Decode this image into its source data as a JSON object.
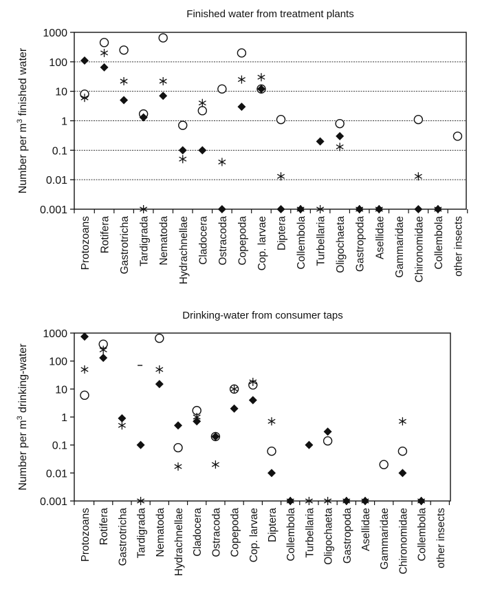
{
  "chart_data": [
    {
      "type": "scatter",
      "title": "Finished water from treatment plants",
      "xlabel": "",
      "ylabel": "Number per m3 finished water",
      "yscale": "log",
      "ylim": [
        0.001,
        1000
      ],
      "yticks": [
        "1000",
        "100",
        "10",
        "1",
        "0.1",
        "0.01",
        "0.001"
      ],
      "grid": "horizontal-dotted",
      "categories": [
        "Protozoans",
        "Rotifera",
        "Gastrotricha",
        "Tardigrada",
        "Nematoda",
        "Hydrachnellae",
        "Cladocera",
        "Ostracoda",
        "Copepoda",
        "Cop. larvae",
        "Diptera",
        "Collembola",
        "Turbellaria",
        "Oligochaeta",
        "Gastropoda",
        "Asellidae",
        "Gammaridae",
        "Chironomidae",
        "Collembola",
        "other insects"
      ],
      "series": [
        {
          "name": "filled-diamond",
          "marker": "diamond",
          "values": [
            110,
            65,
            5,
            1.3,
            7,
            0.1,
            0.1,
            0.001,
            3,
            12,
            0.001,
            0.001,
            0.2,
            0.3,
            0.001,
            0.001,
            null,
            0.001,
            0.001,
            null
          ]
        },
        {
          "name": "open-circle",
          "marker": "circle",
          "values": [
            8,
            450,
            250,
            1.7,
            650,
            0.7,
            2.2,
            12,
            200,
            12,
            1.1,
            null,
            null,
            0.8,
            null,
            null,
            null,
            1.1,
            null,
            0.3
          ]
        },
        {
          "name": "asterisk",
          "marker": "asterisk",
          "values": [
            6,
            200,
            22,
            0.001,
            22,
            0.05,
            4,
            0.04,
            25,
            30,
            0.013,
            0.001,
            0.001,
            0.13,
            0.001,
            0.001,
            null,
            0.013,
            0.001,
            null
          ]
        }
      ]
    },
    {
      "type": "scatter",
      "title": "Drinking-water from consumer taps",
      "xlabel": "",
      "ylabel": "Number per m3 drinking-water",
      "yscale": "log",
      "ylim": [
        0.001,
        1000
      ],
      "yticks": [
        "1000",
        "100",
        "10",
        "1",
        "0.1",
        "0.01",
        "0.001"
      ],
      "grid": "none",
      "categories": [
        "Protozoans",
        "Rotifera",
        "Gastrotricha",
        "Tardigrada",
        "Nematoda",
        "Hydrachnellae",
        "Cladocera",
        "Ostracoda",
        "Copepoda",
        "Cop. larvae",
        "Diptera",
        "Collembola",
        "Turbellaria",
        "Oligochaeta",
        "Gastropoda",
        "Asellidae",
        "Gammaridae",
        "Chironomidae",
        "Collembola",
        "other insects"
      ],
      "series": [
        {
          "name": "filled-diamond",
          "marker": "diamond",
          "values": [
            750,
            130,
            0.9,
            0.1,
            15,
            0.5,
            0.7,
            0.2,
            2,
            4,
            0.01,
            0.001,
            0.1,
            0.3,
            0.001,
            0.001,
            null,
            0.01,
            0.001,
            null
          ]
        },
        {
          "name": "open-circle",
          "marker": "circle",
          "values": [
            6,
            400,
            null,
            null,
            650,
            0.08,
            1.7,
            0.2,
            10,
            14,
            0.06,
            null,
            null,
            0.14,
            null,
            null,
            0.02,
            0.06,
            null,
            null
          ]
        },
        {
          "name": "asterisk",
          "marker": "asterisk",
          "values": [
            50,
            250,
            0.5,
            0.001,
            50,
            0.017,
            1,
            0.02,
            10,
            18,
            0.7,
            0.001,
            0.001,
            0.001,
            0.001,
            0.001,
            null,
            0.7,
            0.001,
            null
          ]
        }
      ],
      "annotations": [
        {
          "category": "Tardigrada",
          "marker": "dash",
          "value": 70
        }
      ]
    }
  ]
}
